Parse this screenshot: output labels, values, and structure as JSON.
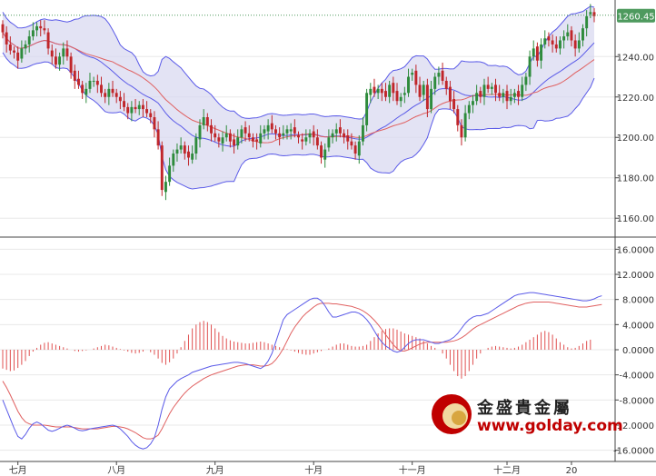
{
  "colors": {
    "up": "#2e8b3c",
    "down": "#c0262a",
    "band_fill": "#d9d9f0",
    "band_line": "#5a5ae8",
    "ma_line": "#e06060",
    "hist": "#e05050",
    "macd_line": "#5a5ae8",
    "signal_line": "#e06060",
    "last_price_bg": "#4e9a5e",
    "grid": "#e8e8e8",
    "logo_red": "#c00000"
  },
  "chart_data": [
    {
      "type": "candlestick",
      "x_labels": [
        "七月",
        "八月",
        "九月",
        "十月",
        "十一月",
        "十二月",
        "20"
      ],
      "y_ticks": [
        "1160.00",
        "1180.00",
        "1200.00",
        "1220.00",
        "1240.00"
      ],
      "ylim": [
        1152,
        1268
      ],
      "last_price": "1260.45",
      "overlays": [
        "bollinger upper",
        "bollinger middle",
        "bollinger lower",
        "moving average"
      ],
      "closes": [
        1252,
        1246,
        1243,
        1242,
        1238,
        1244,
        1246,
        1250,
        1253,
        1255,
        1254,
        1253,
        1244,
        1240,
        1236,
        1240,
        1244,
        1240,
        1232,
        1228,
        1226,
        1222,
        1224,
        1228,
        1228,
        1226,
        1222,
        1220,
        1224,
        1222,
        1220,
        1218,
        1215,
        1212,
        1215,
        1214,
        1216,
        1214,
        1212,
        1210,
        1204,
        1196,
        1174,
        1178,
        1186,
        1192,
        1194,
        1196,
        1192,
        1190,
        1192,
        1200,
        1206,
        1210,
        1206,
        1202,
        1200,
        1198,
        1200,
        1202,
        1198,
        1196,
        1200,
        1204,
        1202,
        1200,
        1198,
        1198,
        1202,
        1204,
        1206,
        1204,
        1202,
        1200,
        1202,
        1204,
        1204,
        1202,
        1200,
        1198,
        1200,
        1202,
        1200,
        1196,
        1190,
        1194,
        1200,
        1202,
        1204,
        1202,
        1200,
        1198,
        1196,
        1192,
        1198,
        1206,
        1222,
        1224,
        1222,
        1224,
        1222,
        1220,
        1226,
        1222,
        1218,
        1220,
        1222,
        1230,
        1232,
        1226,
        1220,
        1226,
        1214,
        1224,
        1230,
        1232,
        1228,
        1224,
        1218,
        1214,
        1206,
        1200,
        1212,
        1216,
        1218,
        1222,
        1220,
        1226,
        1224,
        1225,
        1222,
        1220,
        1222,
        1218,
        1220,
        1222,
        1220,
        1226,
        1230,
        1240,
        1244,
        1238,
        1246,
        1249,
        1248,
        1246,
        1244,
        1248,
        1250,
        1252,
        1248,
        1244,
        1248,
        1254,
        1260,
        1262,
        1260
      ],
      "opens": [
        1256,
        1252,
        1246,
        1243,
        1242,
        1239,
        1244,
        1246,
        1250,
        1253,
        1255,
        1254,
        1252,
        1243,
        1240,
        1236,
        1240,
        1244,
        1240,
        1233,
        1229,
        1226,
        1221,
        1224,
        1228,
        1228,
        1226,
        1222,
        1220,
        1224,
        1222,
        1220,
        1218,
        1215,
        1212,
        1215,
        1214,
        1216,
        1214,
        1212,
        1210,
        1204,
        1196,
        1173,
        1178,
        1186,
        1192,
        1194,
        1196,
        1193,
        1189,
        1192,
        1199,
        1206,
        1210,
        1206,
        1202,
        1200,
        1197,
        1200,
        1202,
        1199,
        1196,
        1200,
        1205,
        1202,
        1200,
        1199,
        1197,
        1202,
        1203,
        1207,
        1204,
        1202,
        1201,
        1202,
        1203,
        1205,
        1201,
        1199,
        1198,
        1200,
        1203,
        1200,
        1196,
        1189,
        1195,
        1200,
        1202,
        1205,
        1202,
        1201,
        1198,
        1196,
        1191,
        1198,
        1206,
        1221,
        1225,
        1222,
        1224,
        1223,
        1220,
        1227,
        1223,
        1218,
        1221,
        1222,
        1231,
        1233,
        1226,
        1221,
        1226,
        1214,
        1224,
        1230,
        1233,
        1228,
        1225,
        1219,
        1214,
        1206,
        1200,
        1212,
        1216,
        1218,
        1223,
        1220,
        1226,
        1224,
        1226,
        1222,
        1220,
        1223,
        1218,
        1220,
        1223,
        1220,
        1226,
        1230,
        1240,
        1245,
        1238,
        1246,
        1250,
        1248,
        1246,
        1244,
        1248,
        1250,
        1253,
        1248,
        1244,
        1248,
        1254,
        1261,
        1262
      ]
    },
    {
      "type": "macd",
      "y_ticks": [
        "16.0000",
        "12.0000",
        "8.0000",
        "4.0000",
        "0.0000",
        "-4.0000",
        "-8.0000",
        "-12.0000",
        "-16.0000"
      ],
      "ylim": [
        -17.5,
        17.5
      ],
      "histogram": [
        -3.0,
        -3.2,
        -3.4,
        -3.3,
        -2.9,
        -2.4,
        -1.8,
        -1.0,
        -0.3,
        0.3,
        0.8,
        1.1,
        1.2,
        1.0,
        0.8,
        0.6,
        0.4,
        0.2,
        0.0,
        -0.2,
        -0.3,
        -0.2,
        -0.1,
        0.0,
        0.2,
        0.4,
        0.6,
        0.8,
        0.7,
        0.5,
        0.3,
        0.1,
        -0.1,
        -0.3,
        -0.5,
        -0.6,
        -0.5,
        -0.3,
        0.0,
        -0.4,
        -0.8,
        -1.4,
        -2.1,
        -2.4,
        -2.0,
        -1.4,
        -0.6,
        0.4,
        1.4,
        2.4,
        3.4,
        4.0,
        4.4,
        4.6,
        4.4,
        4.0,
        3.4,
        2.8,
        2.2,
        1.8,
        1.5,
        1.3,
        1.2,
        1.1,
        1.0,
        1.0,
        1.1,
        1.2,
        1.3,
        1.2,
        1.0,
        0.8,
        0.6,
        0.4,
        0.2,
        0.1,
        -0.1,
        -0.3,
        -0.5,
        -0.7,
        -0.8,
        -0.8,
        -0.6,
        -0.4,
        -0.2,
        0.0,
        0.2,
        0.5,
        0.8,
        1.0,
        1.0,
        0.8,
        0.6,
        0.5,
        0.5,
        0.6,
        0.8,
        1.4,
        2.0,
        2.6,
        3.0,
        3.3,
        3.4,
        3.4,
        3.2,
        2.9,
        2.6,
        2.4,
        2.2,
        2.0,
        1.8,
        1.4,
        1.0,
        0.6,
        0.3,
        0.0,
        -0.6,
        -1.4,
        -2.4,
        -3.4,
        -4.2,
        -4.6,
        -4.2,
        -3.4,
        -2.4,
        -1.4,
        -0.6,
        0.0,
        0.3,
        0.5,
        0.6,
        0.5,
        0.4,
        0.3,
        0.2,
        0.3,
        0.5,
        0.8,
        1.2,
        1.6,
        2.0,
        2.4,
        2.8,
        3.0,
        2.8,
        2.4,
        1.8,
        1.2,
        0.8,
        0.4,
        0.2,
        0.3,
        0.6,
        1.0,
        1.4,
        1.6
      ],
      "macd": [
        -8.0,
        -9.5,
        -11.0,
        -12.5,
        -13.8,
        -14.2,
        -13.5,
        -12.5,
        -11.8,
        -11.5,
        -11.8,
        -12.3,
        -12.8,
        -13.0,
        -12.8,
        -12.5,
        -12.2,
        -12.0,
        -12.2,
        -12.5,
        -12.8,
        -12.9,
        -12.8,
        -12.6,
        -12.5,
        -12.4,
        -12.3,
        -12.2,
        -12.1,
        -12.0,
        -12.2,
        -12.6,
        -13.2,
        -13.8,
        -14.6,
        -15.2,
        -15.6,
        -15.8,
        -15.6,
        -15.0,
        -14.0,
        -12.0,
        -9.5,
        -7.5,
        -6.2,
        -5.6,
        -5.0,
        -4.6,
        -4.3,
        -4.0,
        -3.6,
        -3.4,
        -3.2,
        -3.0,
        -2.8,
        -2.6,
        -2.5,
        -2.4,
        -2.3,
        -2.2,
        -2.1,
        -2.0,
        -2.0,
        -2.1,
        -2.2,
        -2.4,
        -2.6,
        -2.8,
        -3.0,
        -2.6,
        -1.8,
        -0.6,
        1.2,
        3.0,
        4.8,
        5.6,
        6.0,
        6.4,
        6.8,
        7.2,
        7.6,
        8.0,
        8.2,
        8.2,
        7.8,
        7.0,
        6.0,
        5.2,
        5.2,
        5.4,
        5.6,
        5.8,
        6.0,
        6.0,
        5.8,
        5.4,
        4.8,
        4.0,
        3.0,
        2.0,
        1.2,
        0.6,
        0.2,
        -0.2,
        -0.4,
        -0.2,
        0.4,
        1.0,
        1.4,
        1.6,
        1.6,
        1.6,
        1.4,
        1.2,
        1.0,
        1.0,
        1.2,
        1.4,
        1.6,
        2.0,
        2.6,
        3.4,
        4.2,
        4.8,
        5.2,
        5.4,
        5.4,
        5.6,
        5.8,
        6.2,
        6.6,
        7.0,
        7.4,
        7.8,
        8.2,
        8.6,
        8.8,
        8.9,
        9.0,
        9.1,
        9.1,
        9.0,
        8.9,
        8.8,
        8.7,
        8.6,
        8.5,
        8.4,
        8.3,
        8.2,
        8.1,
        8.0,
        7.9,
        7.8,
        7.8,
        7.9,
        8.1,
        8.4,
        8.6
      ],
      "signal": [
        -5.0,
        -6.0,
        -7.2,
        -8.5,
        -9.8,
        -10.8,
        -11.5,
        -11.8,
        -12.0,
        -12.0,
        -12.0,
        -12.0,
        -12.1,
        -12.2,
        -12.3,
        -12.3,
        -12.3,
        -12.3,
        -12.3,
        -12.4,
        -12.5,
        -12.6,
        -12.6,
        -12.6,
        -12.6,
        -12.6,
        -12.5,
        -12.4,
        -12.3,
        -12.2,
        -12.2,
        -12.3,
        -12.4,
        -12.6,
        -12.9,
        -13.2,
        -13.6,
        -14.0,
        -14.2,
        -14.2,
        -14.0,
        -13.6,
        -12.6,
        -11.4,
        -10.2,
        -9.2,
        -8.4,
        -7.6,
        -6.9,
        -6.3,
        -5.8,
        -5.4,
        -5.0,
        -4.6,
        -4.3,
        -4.0,
        -3.8,
        -3.6,
        -3.4,
        -3.2,
        -3.0,
        -2.8,
        -2.6,
        -2.5,
        -2.4,
        -2.4,
        -2.4,
        -2.5,
        -2.6,
        -2.6,
        -2.5,
        -2.2,
        -1.6,
        -0.8,
        0.2,
        1.4,
        2.6,
        3.6,
        4.4,
        5.2,
        5.8,
        6.3,
        6.8,
        7.2,
        7.4,
        7.4,
        7.4,
        7.3,
        7.3,
        7.2,
        7.1,
        7.0,
        6.9,
        6.7,
        6.5,
        6.2,
        5.8,
        5.3,
        4.7,
        4.0,
        3.2,
        2.4,
        1.6,
        0.8,
        0.2,
        -0.2,
        -0.2,
        0.0,
        0.3,
        0.6,
        0.9,
        1.1,
        1.2,
        1.2,
        1.2,
        1.2,
        1.2,
        1.2,
        1.3,
        1.4,
        1.6,
        1.9,
        2.3,
        2.8,
        3.3,
        3.7,
        4.0,
        4.3,
        4.6,
        4.9,
        5.2,
        5.5,
        5.8,
        6.1,
        6.4,
        6.7,
        7.0,
        7.2,
        7.4,
        7.5,
        7.6,
        7.6,
        7.6,
        7.6,
        7.6,
        7.5,
        7.4,
        7.3,
        7.2,
        7.1,
        7.0,
        6.9,
        6.8,
        6.8,
        6.8,
        6.9,
        7.0,
        7.1,
        7.2
      ]
    }
  ],
  "logo": {
    "name_cn": "金盛貴金屬",
    "url": "www.golday.com"
  }
}
